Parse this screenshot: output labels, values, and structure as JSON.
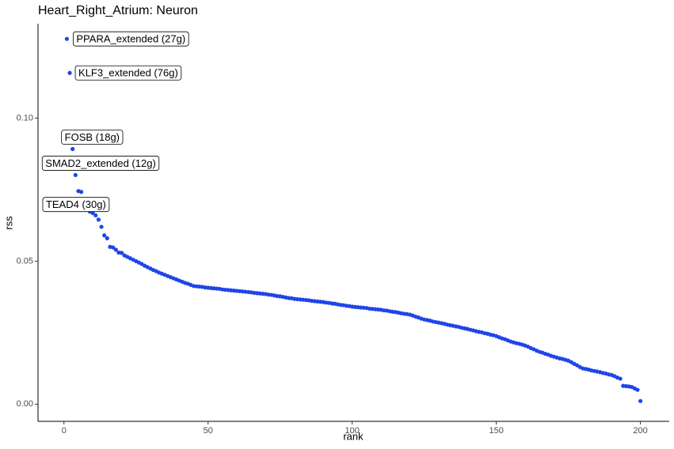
{
  "chart_data": {
    "type": "scatter",
    "title": "Heart_Right_Atrium: Neuron",
    "xlabel": "rank",
    "ylabel": "rss",
    "color": "#1f45e8",
    "grid": false,
    "xlim": [
      -9,
      210
    ],
    "ylim": [
      -0.006,
      0.133
    ],
    "xticks": [
      0,
      50,
      100,
      150,
      200
    ],
    "yticks": [
      {
        "value": 0,
        "label": "0.00"
      },
      {
        "value": 0.05,
        "label": "0.05"
      },
      {
        "value": 0.1,
        "label": "0.10"
      }
    ],
    "annotations": [
      {
        "text": "PPARA_extended (27g)",
        "x": 1
      },
      {
        "text": "KLF3_extended (76g)",
        "x": 2
      },
      {
        "text": "FOSB (18g)",
        "x": 3
      },
      {
        "text": "SMAD2_extended (12g)",
        "x": 4
      },
      {
        "text": "TEAD4 (30g)",
        "x": 5
      }
    ],
    "x": [
      1,
      2,
      3,
      4,
      5,
      6,
      7,
      8,
      9,
      10,
      11,
      12,
      13,
      14,
      15,
      16,
      17,
      18,
      19,
      20,
      21,
      22,
      23,
      24,
      25,
      26,
      27,
      28,
      29,
      30,
      31,
      32,
      33,
      34,
      35,
      36,
      37,
      38,
      39,
      40,
      41,
      42,
      43,
      44,
      45,
      46,
      47,
      48,
      49,
      50,
      51,
      52,
      53,
      54,
      55,
      56,
      57,
      58,
      59,
      60,
      61,
      62,
      63,
      64,
      65,
      66,
      67,
      68,
      69,
      70,
      71,
      72,
      73,
      74,
      75,
      76,
      77,
      78,
      79,
      80,
      81,
      82,
      83,
      84,
      85,
      86,
      87,
      88,
      89,
      90,
      91,
      92,
      93,
      94,
      95,
      96,
      97,
      98,
      99,
      100,
      101,
      102,
      103,
      104,
      105,
      106,
      107,
      108,
      109,
      110,
      111,
      112,
      113,
      114,
      115,
      116,
      117,
      118,
      119,
      120,
      121,
      122,
      123,
      124,
      125,
      126,
      127,
      128,
      129,
      130,
      131,
      132,
      133,
      134,
      135,
      136,
      137,
      138,
      139,
      140,
      141,
      142,
      143,
      144,
      145,
      146,
      147,
      148,
      149,
      150,
      151,
      152,
      153,
      154,
      155,
      156,
      157,
      158,
      159,
      160,
      161,
      162,
      163,
      164,
      165,
      166,
      167,
      168,
      169,
      170,
      171,
      172,
      173,
      174,
      175,
      176,
      177,
      178,
      179,
      180,
      181,
      182,
      183,
      184,
      185,
      186,
      187,
      188,
      189,
      190,
      191,
      192,
      193,
      194,
      195,
      196,
      197,
      198,
      199,
      200
    ],
    "values": [
      0.1277,
      0.1158,
      0.0892,
      0.0801,
      0.0745,
      0.0742,
      0.071,
      0.069,
      0.0673,
      0.0668,
      0.066,
      0.0645,
      0.062,
      0.059,
      0.058,
      0.055,
      0.0548,
      0.054,
      0.053,
      0.0529,
      0.052,
      0.0515,
      0.051,
      0.0505,
      0.05,
      0.0495,
      0.049,
      0.0484,
      0.0479,
      0.0474,
      0.0469,
      0.0465,
      0.046,
      0.0456,
      0.0452,
      0.0448,
      0.0444,
      0.044,
      0.0436,
      0.0432,
      0.0428,
      0.0424,
      0.0421,
      0.0417,
      0.0413,
      0.0412,
      0.0411,
      0.041,
      0.0408,
      0.0407,
      0.0406,
      0.0405,
      0.0404,
      0.0403,
      0.0401,
      0.04,
      0.0399,
      0.0398,
      0.0397,
      0.0396,
      0.0395,
      0.0394,
      0.0393,
      0.0392,
      0.0391,
      0.0389,
      0.0388,
      0.0387,
      0.0386,
      0.0385,
      0.0383,
      0.0382,
      0.038,
      0.0378,
      0.0377,
      0.0375,
      0.0373,
      0.0371,
      0.037,
      0.0368,
      0.0367,
      0.0366,
      0.0365,
      0.0364,
      0.0363,
      0.0361,
      0.036,
      0.0359,
      0.0358,
      0.0357,
      0.0355,
      0.0354,
      0.0352,
      0.0351,
      0.0349,
      0.0347,
      0.0346,
      0.0344,
      0.0343,
      0.0341,
      0.034,
      0.0339,
      0.0338,
      0.0337,
      0.0336,
      0.0334,
      0.0333,
      0.0332,
      0.0331,
      0.033,
      0.0328,
      0.0327,
      0.0325,
      0.0323,
      0.0322,
      0.032,
      0.0318,
      0.0316,
      0.0315,
      0.0313,
      0.031,
      0.0306,
      0.0303,
      0.0299,
      0.0296,
      0.0294,
      0.0292,
      0.0289,
      0.0287,
      0.0285,
      0.0283,
      0.0281,
      0.0278,
      0.0276,
      0.0274,
      0.0272,
      0.027,
      0.0267,
      0.0265,
      0.0263,
      0.026,
      0.0258,
      0.0255,
      0.0253,
      0.0251,
      0.0248,
      0.0246,
      0.0243,
      0.0241,
      0.0238,
      0.0234,
      0.023,
      0.0227,
      0.0223,
      0.0219,
      0.0216,
      0.0213,
      0.0211,
      0.0208,
      0.0205,
      0.0201,
      0.0196,
      0.0192,
      0.0187,
      0.0183,
      0.018,
      0.0176,
      0.0173,
      0.0169,
      0.0166,
      0.0163,
      0.016,
      0.0158,
      0.0155,
      0.0152,
      0.0147,
      0.0141,
      0.0136,
      0.013,
      0.0125,
      0.0123,
      0.0121,
      0.0118,
      0.0116,
      0.0114,
      0.0112,
      0.0109,
      0.0107,
      0.0104,
      0.0102,
      0.0098,
      0.0093,
      0.0089,
      0.0064,
      0.0063,
      0.0062,
      0.006,
      0.0055,
      0.005,
      0.0011
    ]
  }
}
